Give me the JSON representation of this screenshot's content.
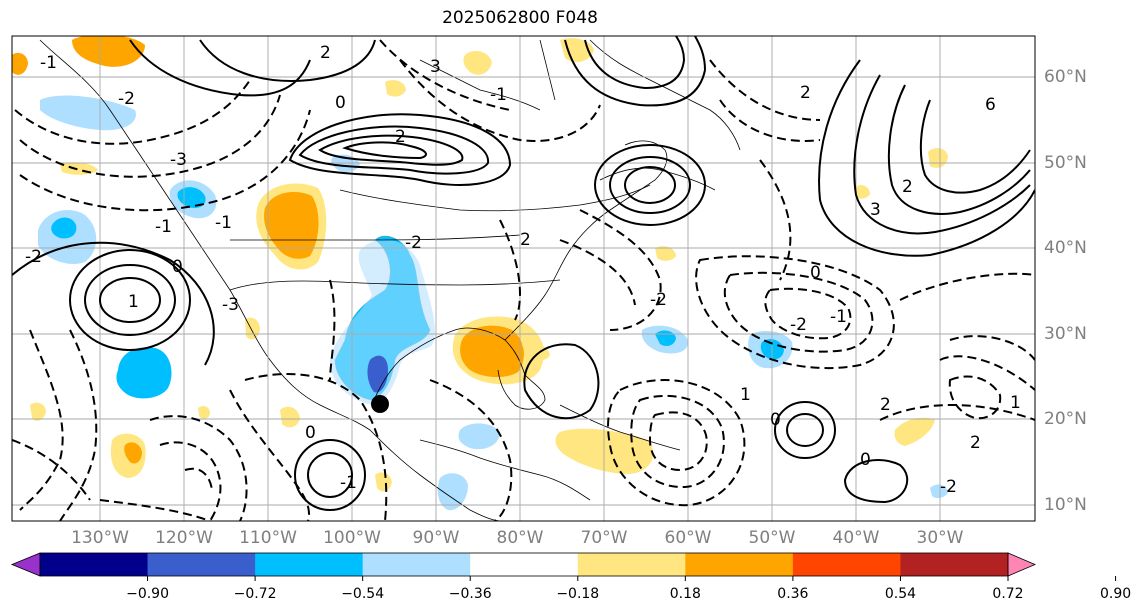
{
  "title": "2025062800 F048",
  "map": {
    "lon_labels": [
      "130°W",
      "120°W",
      "110°W",
      "100°W",
      "90°W",
      "80°W",
      "70°W",
      "60°W",
      "50°W",
      "40°W",
      "30°W"
    ],
    "lat_labels": [
      "60°N",
      "50°N",
      "40°N",
      "30°N",
      "20°N",
      "10°N"
    ],
    "contour_labels": [
      "-1",
      "-2",
      "-3",
      "-1",
      "0",
      "1",
      "2",
      "3",
      "-1",
      "-2",
      "6",
      "3",
      "-3",
      "-2",
      "2",
      "0",
      "-1",
      "2",
      "-2",
      "0",
      "-1",
      "-2",
      "2",
      "1",
      "2",
      "0",
      "2",
      "1",
      "0",
      "-2",
      "0",
      "-1",
      "2"
    ],
    "marker": "black-dot"
  },
  "colorbar": {
    "ticks": [
      "−0.90",
      "−0.72",
      "−0.54",
      "−0.36",
      "−0.18",
      "0.18",
      "0.36",
      "0.54",
      "0.72",
      "0.90"
    ],
    "colors": [
      "#9932cc",
      "#00008b",
      "#3a5fcd",
      "#00bfff",
      "#afdfff",
      "#ffffff",
      "#ffe680",
      "#ffa500",
      "#ff4500",
      "#b22222",
      "#ff85b4"
    ]
  }
}
